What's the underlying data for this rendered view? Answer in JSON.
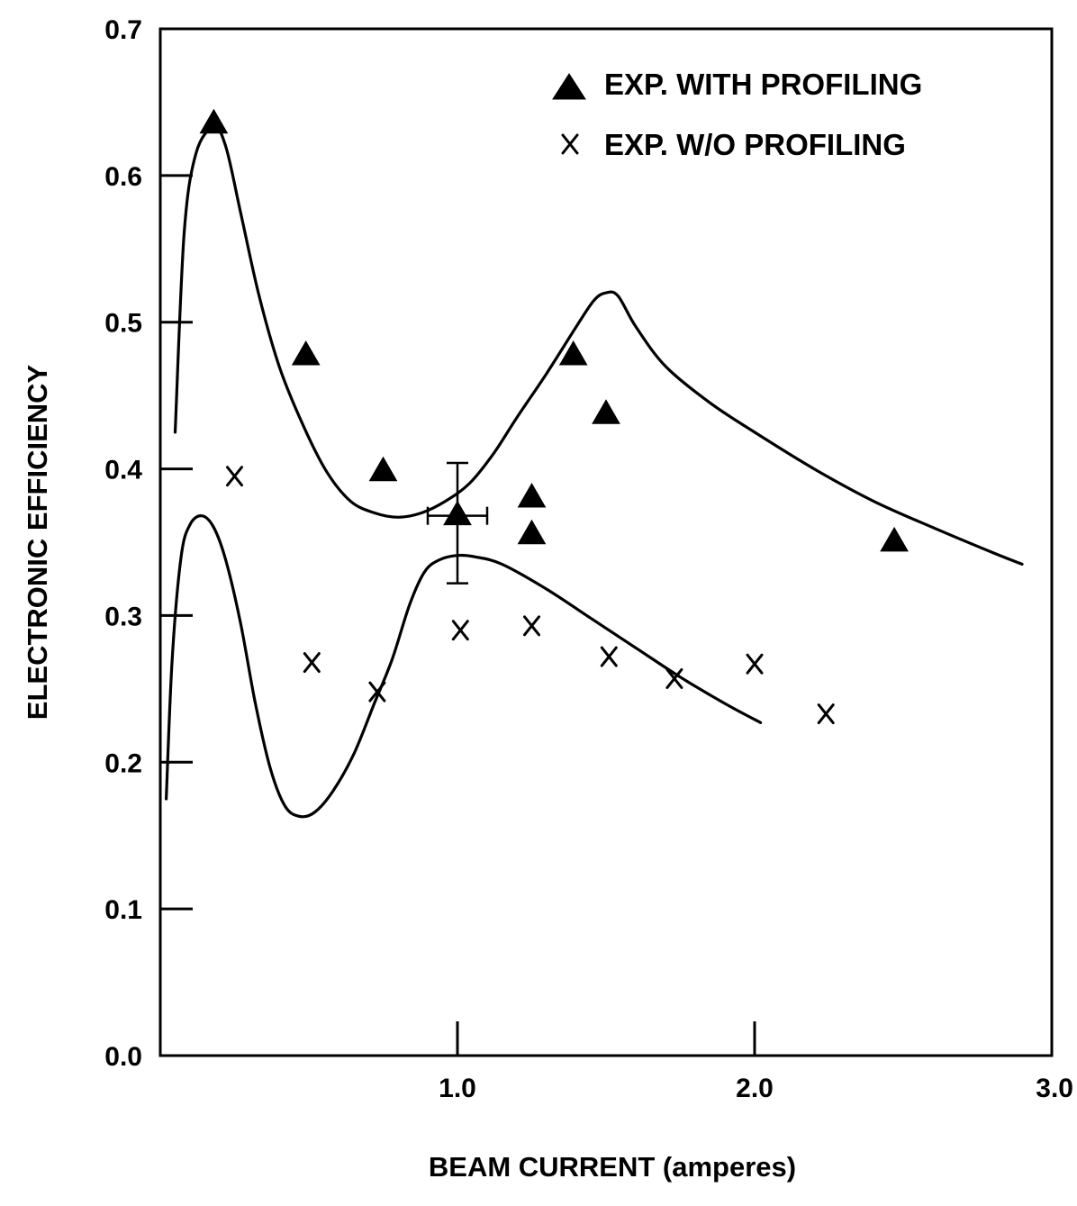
{
  "chart_data": {
    "type": "scatter",
    "title": "",
    "xlabel": "BEAM CURRENT (amperes)",
    "ylabel": "ELECTRONIC EFFICIENCY",
    "xlim": [
      0.0,
      3.0
    ],
    "ylim": [
      0.0,
      0.7
    ],
    "x_ticks": [
      1.0,
      2.0,
      3.0
    ],
    "x_tick_labels": [
      "1.0",
      "2.0",
      "3.0"
    ],
    "y_ticks": [
      0.0,
      0.1,
      0.2,
      0.3,
      0.4,
      0.5,
      0.6,
      0.7
    ],
    "y_tick_labels": [
      "0.0",
      "0.1",
      "0.2",
      "0.3",
      "0.4",
      "0.5",
      "0.6",
      "0.7"
    ],
    "grid": false,
    "legend_position": "top-right",
    "series": [
      {
        "name": "EXP. WITH PROFILING",
        "marker": "triangle",
        "points": [
          {
            "x": 0.18,
            "y": 0.635
          },
          {
            "x": 0.49,
            "y": 0.477
          },
          {
            "x": 0.75,
            "y": 0.398
          },
          {
            "x": 1.0,
            "y": 0.368
          },
          {
            "x": 1.25,
            "y": 0.38
          },
          {
            "x": 1.25,
            "y": 0.355
          },
          {
            "x": 1.39,
            "y": 0.477
          },
          {
            "x": 1.5,
            "y": 0.437
          },
          {
            "x": 2.47,
            "y": 0.35
          }
        ]
      },
      {
        "name": "EXP. W/O PROFILING",
        "marker": "x",
        "points": [
          {
            "x": 0.25,
            "y": 0.395
          },
          {
            "x": 0.51,
            "y": 0.268
          },
          {
            "x": 0.73,
            "y": 0.248
          },
          {
            "x": 1.01,
            "y": 0.29
          },
          {
            "x": 1.25,
            "y": 0.293
          },
          {
            "x": 1.51,
            "y": 0.272
          },
          {
            "x": 1.73,
            "y": 0.257
          },
          {
            "x": 2.0,
            "y": 0.267
          },
          {
            "x": 2.24,
            "y": 0.233
          }
        ]
      }
    ],
    "curves": [
      {
        "id": "upper",
        "points": [
          [
            0.05,
            0.425
          ],
          [
            0.08,
            0.56
          ],
          [
            0.12,
            0.615
          ],
          [
            0.18,
            0.633
          ],
          [
            0.22,
            0.62
          ],
          [
            0.27,
            0.575
          ],
          [
            0.33,
            0.52
          ],
          [
            0.4,
            0.47
          ],
          [
            0.48,
            0.43
          ],
          [
            0.56,
            0.398
          ],
          [
            0.64,
            0.378
          ],
          [
            0.72,
            0.37
          ],
          [
            0.8,
            0.367
          ],
          [
            0.88,
            0.37
          ],
          [
            0.96,
            0.378
          ],
          [
            1.04,
            0.39
          ],
          [
            1.12,
            0.41
          ],
          [
            1.2,
            0.435
          ],
          [
            1.3,
            0.465
          ],
          [
            1.4,
            0.497
          ],
          [
            1.46,
            0.515
          ],
          [
            1.5,
            0.52
          ],
          [
            1.54,
            0.518
          ],
          [
            1.6,
            0.497
          ],
          [
            1.7,
            0.47
          ],
          [
            1.85,
            0.445
          ],
          [
            2.0,
            0.425
          ],
          [
            2.2,
            0.4
          ],
          [
            2.4,
            0.378
          ],
          [
            2.6,
            0.36
          ],
          [
            2.8,
            0.343
          ],
          [
            2.9,
            0.335
          ]
        ]
      },
      {
        "id": "lower",
        "points": [
          [
            0.02,
            0.175
          ],
          [
            0.04,
            0.27
          ],
          [
            0.07,
            0.34
          ],
          [
            0.1,
            0.362
          ],
          [
            0.14,
            0.368
          ],
          [
            0.18,
            0.36
          ],
          [
            0.22,
            0.338
          ],
          [
            0.27,
            0.295
          ],
          [
            0.32,
            0.24
          ],
          [
            0.37,
            0.196
          ],
          [
            0.42,
            0.17
          ],
          [
            0.47,
            0.163
          ],
          [
            0.52,
            0.166
          ],
          [
            0.58,
            0.18
          ],
          [
            0.65,
            0.205
          ],
          [
            0.72,
            0.24
          ],
          [
            0.78,
            0.27
          ],
          [
            0.84,
            0.308
          ],
          [
            0.89,
            0.33
          ],
          [
            0.94,
            0.338
          ],
          [
            1.0,
            0.341
          ],
          [
            1.06,
            0.34
          ],
          [
            1.15,
            0.335
          ],
          [
            1.3,
            0.318
          ],
          [
            1.45,
            0.298
          ],
          [
            1.6,
            0.278
          ],
          [
            1.75,
            0.258
          ],
          [
            1.9,
            0.24
          ],
          [
            2.02,
            0.227
          ]
        ]
      }
    ],
    "error_bar": {
      "x": 1.0,
      "y": 0.368,
      "x_range": [
        0.9,
        1.1
      ],
      "y_range": [
        0.322,
        0.404
      ]
    }
  }
}
